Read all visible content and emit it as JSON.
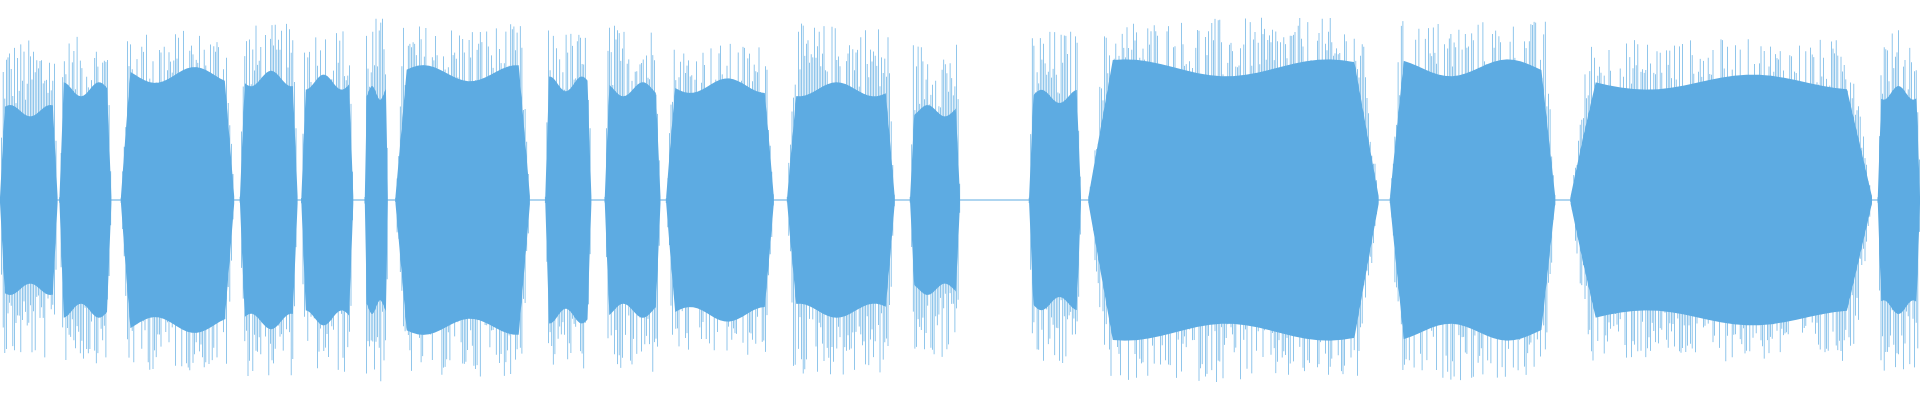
{
  "waveform": {
    "color": "#5dabe2",
    "background": "#ffffff",
    "segments": [
      {
        "start": 0.0,
        "end": 0.03,
        "peak": 0.85,
        "core": 0.5
      },
      {
        "start": 0.031,
        "end": 0.058,
        "peak": 0.86,
        "core": 0.62
      },
      {
        "start": 0.063,
        "end": 0.122,
        "peak": 0.9,
        "core": 0.7
      },
      {
        "start": 0.125,
        "end": 0.155,
        "peak": 0.93,
        "core": 0.68
      },
      {
        "start": 0.157,
        "end": 0.184,
        "peak": 0.92,
        "core": 0.66
      },
      {
        "start": 0.19,
        "end": 0.202,
        "peak": 0.97,
        "core": 0.6
      },
      {
        "start": 0.206,
        "end": 0.276,
        "peak": 0.93,
        "core": 0.71
      },
      {
        "start": 0.284,
        "end": 0.308,
        "peak": 0.9,
        "core": 0.65
      },
      {
        "start": 0.315,
        "end": 0.344,
        "peak": 0.93,
        "core": 0.62
      },
      {
        "start": 0.347,
        "end": 0.403,
        "peak": 0.83,
        "core": 0.64
      },
      {
        "start": 0.41,
        "end": 0.466,
        "peak": 0.93,
        "core": 0.62
      },
      {
        "start": 0.474,
        "end": 0.5,
        "peak": 0.84,
        "core": 0.5
      },
      {
        "start": 0.536,
        "end": 0.563,
        "peak": 0.9,
        "core": 0.58
      },
      {
        "start": 0.567,
        "end": 0.718,
        "peak": 0.96,
        "core": 0.74
      },
      {
        "start": 0.724,
        "end": 0.81,
        "peak": 0.95,
        "core": 0.74
      },
      {
        "start": 0.818,
        "end": 0.975,
        "peak": 0.85,
        "core": 0.66
      },
      {
        "start": 0.978,
        "end": 1.0,
        "peak": 0.9,
        "core": 0.6
      }
    ]
  }
}
